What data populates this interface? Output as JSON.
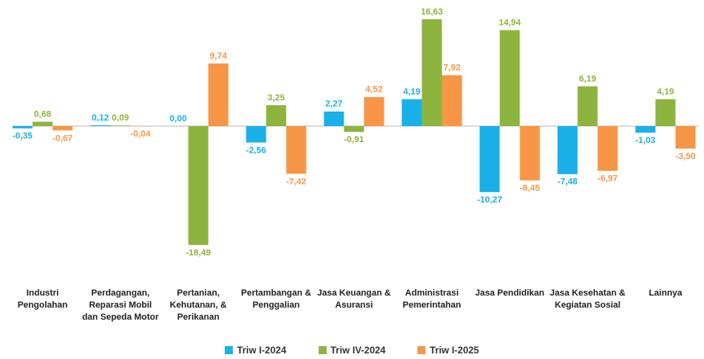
{
  "chart_data": {
    "type": "bar",
    "categories": [
      "Industri Pengolahan",
      "Perdagangan, Reparasi Mobil dan Sepeda Motor",
      "Pertanian, Kehutanan, & Perikanan",
      "Pertambangan & Penggalian",
      "Jasa Keuangan & Asuransi",
      "Administrasi Pemerintahan",
      "Jasa Pendidikan",
      "Jasa Kesehatan & Kegiatan Sosial",
      "Lainnya"
    ],
    "series": [
      {
        "name": "Triw I-2024",
        "color": "#1ab0e8",
        "values": [
          -0.35,
          0.12,
          0.0,
          -2.56,
          2.27,
          4.19,
          -10.27,
          -7.48,
          -1.03
        ],
        "value_labels": [
          "-0,35",
          "0,12",
          "0,00",
          "-2,56",
          "2,27",
          "4,19",
          "-10,27",
          "-7,48",
          "-1,03"
        ]
      },
      {
        "name": "Triw IV-2024",
        "color": "#8db43e",
        "values": [
          0.68,
          0.09,
          -18.49,
          3.25,
          -0.91,
          16.63,
          14.94,
          6.19,
          4.19
        ],
        "value_labels": [
          "0,68",
          "0,09",
          "-18,49",
          "3,25",
          "-0,91",
          "16,63",
          "14,94",
          "6,19",
          "4,19"
        ]
      },
      {
        "name": "Triw I-2025",
        "color": "#f79646",
        "values": [
          -0.67,
          -0.04,
          9.74,
          -7.42,
          4.52,
          7.92,
          -8.45,
          -6.97,
          -3.5
        ],
        "value_labels": [
          "-0,67",
          "-0,04",
          "9,74",
          "-7,42",
          "4,52",
          "7,92",
          "-8,45",
          "-6,97",
          "-3,50"
        ]
      }
    ],
    "ylim": [
      -20,
      17
    ],
    "legend": "bottom"
  }
}
